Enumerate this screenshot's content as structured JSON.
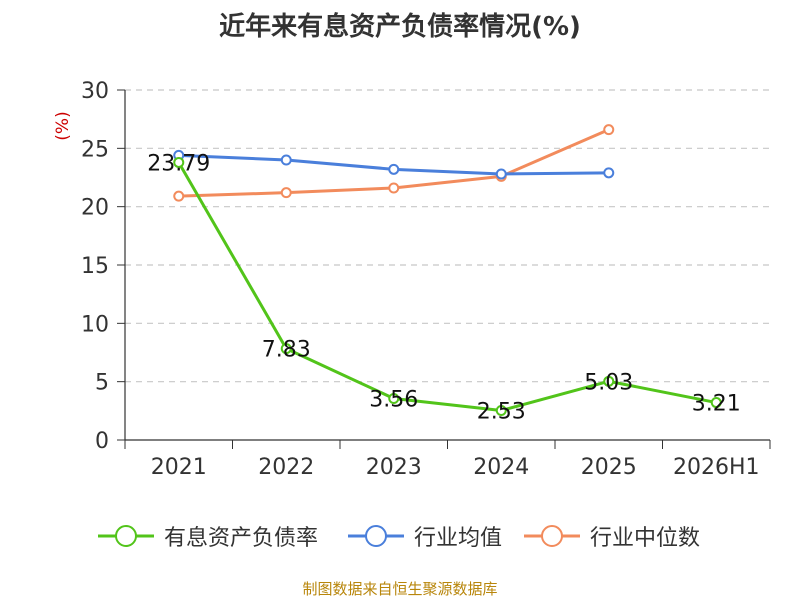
{
  "chart_data": {
    "type": "line",
    "title": "近年来有息资产负债率情况(%)",
    "ylabel": "(%)",
    "ylim": [
      0,
      30
    ],
    "yticks": [
      0,
      5,
      10,
      15,
      20,
      25,
      30
    ],
    "categories": [
      "2021",
      "2022",
      "2023",
      "2024",
      "2025",
      "2026H1"
    ],
    "grid": true,
    "legend_position": "bottom",
    "series": [
      {
        "name": "有息资产负债率",
        "color": "#52c41a",
        "values": [
          23.79,
          7.83,
          3.56,
          2.53,
          5.03,
          3.21
        ],
        "labels": [
          "23.79",
          "7.83",
          "3.56",
          "2.53",
          "5.03",
          "3.21"
        ]
      },
      {
        "name": "行业均值",
        "color": "#4a7fdb",
        "values": [
          24.4,
          24.0,
          23.2,
          22.8,
          22.9,
          null
        ]
      },
      {
        "name": "行业中位数",
        "color": "#f28b5c",
        "values": [
          20.9,
          21.2,
          21.6,
          22.6,
          26.6,
          null
        ]
      }
    ]
  },
  "source": "制图数据来自恒生聚源数据库"
}
